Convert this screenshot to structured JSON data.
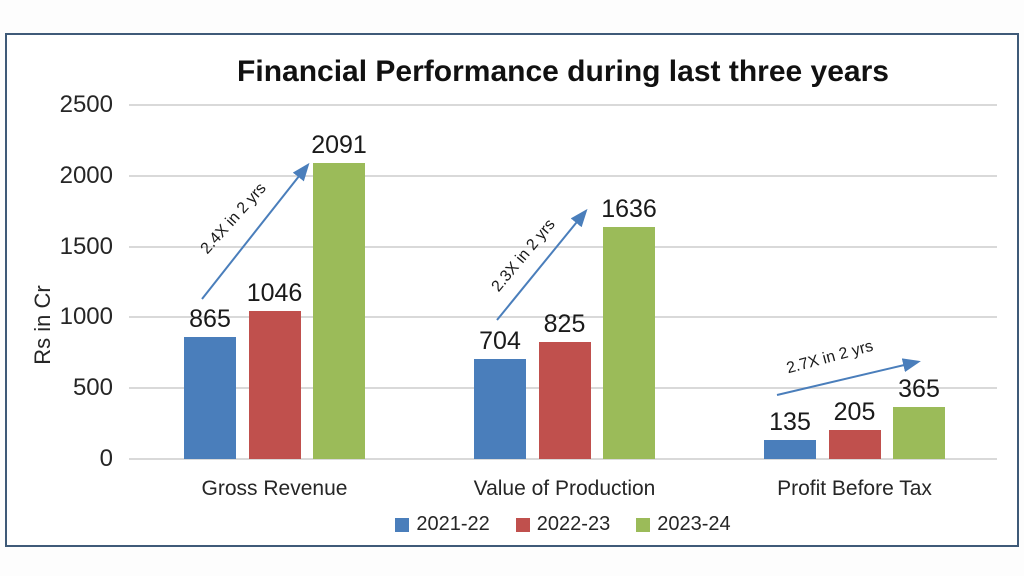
{
  "chart": {
    "title": "Financial Performance during last three years",
    "y_axis_title": "Rs in Cr",
    "chart_data": {
      "type": "bar",
      "categories": [
        "Gross Revenue",
        "Value of Production",
        "Profit Before Tax"
      ],
      "series": [
        {
          "name": "2021-22",
          "color": "#4A7EBB",
          "values": [
            865,
            704,
            135
          ]
        },
        {
          "name": "2022-23",
          "color": "#C0504D",
          "values": [
            1046,
            825,
            205
          ]
        },
        {
          "name": "2023-24",
          "color": "#9BBB59",
          "values": [
            2091,
            1636,
            365
          ]
        }
      ],
      "ylabel": "Rs in Cr",
      "ylim": [
        0,
        2500
      ],
      "y_ticks": [
        0,
        500,
        1000,
        1500,
        2000,
        2500
      ],
      "grid": true,
      "legend_position": "bottom",
      "annotations": [
        {
          "label": "2.4X in 2 yrs",
          "category": "Gross Revenue"
        },
        {
          "label": "2.3X in 2 yrs",
          "category": "Value of Production"
        },
        {
          "label": "2.7X in 2 yrs",
          "category": "Profit Before Tax"
        }
      ],
      "annotation_arrow_color": "#4A7EBB"
    }
  }
}
